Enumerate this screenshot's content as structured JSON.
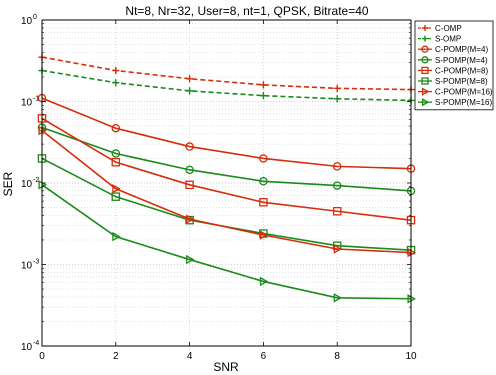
{
  "chart_data": {
    "type": "line",
    "title": "Nt=8, Nr=32, User=8, nt=1, QPSK, Bitrate=40",
    "xlabel": "SNR",
    "ylabel": "SER",
    "xlim": [
      0,
      10
    ],
    "ylim": [
      0.0001,
      1
    ],
    "yscale": "log",
    "grid": true,
    "legend_position": "top-right",
    "x_ticks": [
      0,
      2,
      4,
      6,
      8,
      10
    ],
    "y_ticks": [
      {
        "value": 0.0001,
        "base": "10",
        "exp": "-4"
      },
      {
        "value": 0.001,
        "base": "10",
        "exp": "-3"
      },
      {
        "value": 0.01,
        "base": "10",
        "exp": "-2"
      },
      {
        "value": 0.1,
        "base": "10",
        "exp": "-1"
      },
      {
        "value": 1,
        "base": "10",
        "exp": "0"
      }
    ],
    "x": [
      0,
      2,
      4,
      6,
      8,
      10
    ],
    "series": [
      {
        "name": "C-OMP",
        "color": "#d62d0a",
        "marker": "plus",
        "dashed": true,
        "values": [
          0.35,
          0.24,
          0.19,
          0.16,
          0.145,
          0.14
        ]
      },
      {
        "name": "S-OMP",
        "color": "#1a8a1a",
        "marker": "plus",
        "dashed": true,
        "values": [
          0.24,
          0.17,
          0.135,
          0.118,
          0.108,
          0.103
        ]
      },
      {
        "name": "C-POMP(M=4)",
        "color": "#d62d0a",
        "marker": "circle",
        "dashed": false,
        "values": [
          0.11,
          0.047,
          0.028,
          0.02,
          0.016,
          0.015
        ]
      },
      {
        "name": "S-POMP(M=4)",
        "color": "#1a8a1a",
        "marker": "circle",
        "dashed": false,
        "values": [
          0.048,
          0.023,
          0.0145,
          0.0105,
          0.0093,
          0.008
        ]
      },
      {
        "name": "C-POMP(M=8)",
        "color": "#d62d0a",
        "marker": "square",
        "dashed": false,
        "values": [
          0.062,
          0.018,
          0.0095,
          0.0058,
          0.0045,
          0.0035
        ]
      },
      {
        "name": "S-POMP(M=8)",
        "color": "#1a8a1a",
        "marker": "square",
        "dashed": false,
        "values": [
          0.02,
          0.0068,
          0.0035,
          0.0024,
          0.0017,
          0.0015
        ]
      },
      {
        "name": "C-POMP(M=16)",
        "color": "#d62d0a",
        "marker": "triangle-right",
        "dashed": false,
        "values": [
          0.044,
          0.0085,
          0.0036,
          0.0023,
          0.00155,
          0.0014
        ]
      },
      {
        "name": "S-POMP(M=16)",
        "color": "#1a8a1a",
        "marker": "triangle-right",
        "dashed": false,
        "values": [
          0.0095,
          0.0022,
          0.00115,
          0.00062,
          0.00039,
          0.00038
        ]
      }
    ]
  }
}
